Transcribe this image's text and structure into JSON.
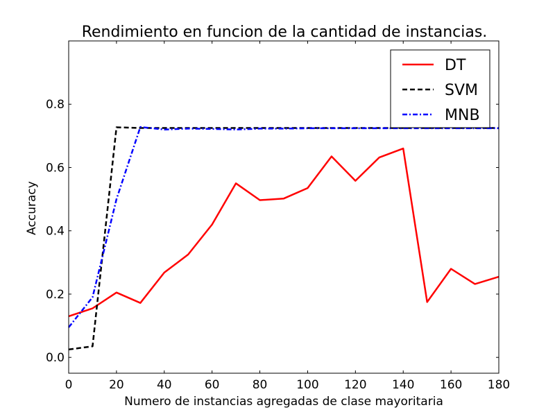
{
  "chart_data": {
    "type": "line",
    "title": "Rendimiento en funcion de la cantidad de instancias.",
    "xlabel": "Numero de instancias agregadas de clase mayoritaria",
    "ylabel": "Accuracy",
    "xlim": [
      0,
      180
    ],
    "ylim": [
      -0.05,
      1.0
    ],
    "xticks": [
      0,
      20,
      40,
      60,
      80,
      100,
      120,
      140,
      160,
      180
    ],
    "xtick_labels": [
      "0",
      "20",
      "40",
      "60",
      "80",
      "100",
      "120",
      "140",
      "160",
      "180"
    ],
    "yticks": [
      0.0,
      0.2,
      0.4,
      0.6,
      0.8
    ],
    "ytick_labels": [
      "0.0",
      "0.2",
      "0.4",
      "0.6",
      "0.8"
    ],
    "grid": false,
    "legend_position": "top-right",
    "series": [
      {
        "name": "DT",
        "color": "#ff0000",
        "style": "solid",
        "x": [
          0,
          10,
          20,
          30,
          40,
          50,
          60,
          70,
          80,
          90,
          100,
          110,
          120,
          130,
          140,
          150,
          160,
          170,
          180
        ],
        "y": [
          0.13,
          0.155,
          0.205,
          0.172,
          0.268,
          0.325,
          0.42,
          0.55,
          0.497,
          0.502,
          0.535,
          0.635,
          0.558,
          0.632,
          0.66,
          0.175,
          0.28,
          0.232,
          0.255
        ]
      },
      {
        "name": "SVM",
        "color": "#000000",
        "style": "dashed",
        "x": [
          0,
          10,
          20,
          30,
          40,
          50,
          60,
          70,
          80,
          90,
          100,
          110,
          120,
          130,
          140,
          150,
          160,
          170,
          180
        ],
        "y": [
          0.025,
          0.035,
          0.727,
          0.725,
          0.725,
          0.725,
          0.725,
          0.725,
          0.725,
          0.725,
          0.725,
          0.725,
          0.725,
          0.725,
          0.725,
          0.725,
          0.725,
          0.725,
          0.725
        ]
      },
      {
        "name": "MNB",
        "color": "#0000ff",
        "style": "dashdot",
        "x": [
          0,
          10,
          20,
          30,
          40,
          50,
          60,
          70,
          80,
          90,
          100,
          110,
          120,
          130,
          140,
          150,
          160,
          170,
          180
        ],
        "y": [
          0.095,
          0.19,
          0.5,
          0.728,
          0.72,
          0.723,
          0.722,
          0.72,
          0.723,
          0.723,
          0.724,
          0.724,
          0.724,
          0.724,
          0.724,
          0.724,
          0.724,
          0.724,
          0.724
        ]
      }
    ]
  }
}
